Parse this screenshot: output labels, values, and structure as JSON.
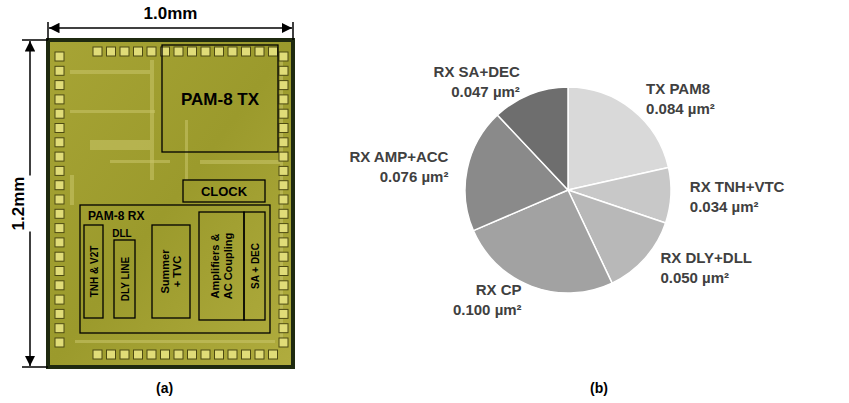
{
  "panel_labels": [
    "(a)",
    "(b)"
  ],
  "die": {
    "width": "1.0mm",
    "height": "1.2mm",
    "blocks": [
      "PAM-8 TX",
      "CLOCK",
      "PAM-8 RX",
      "TNH & V2T",
      "DLL",
      "DLY LINE",
      "Summer + TVC",
      "Amplifiers & AC Coupling",
      "SA + DEC"
    ]
  },
  "chart_data": {
    "type": "pie",
    "categories": [
      "TX PAM8",
      "RX TNH+VTC",
      "RX DLY+DLL",
      "RX CP",
      "RX AMP+ACC",
      "RX SA+DEC"
    ],
    "values": [
      0.084,
      0.034,
      0.05,
      0.1,
      0.076,
      0.047
    ],
    "value_labels": [
      "0.084 µm²",
      "0.034 µm²",
      "0.050 µm²",
      "0.100 µm²",
      "0.076 µm²",
      "0.047 µm²"
    ],
    "colors": [
      "#d9d9d9",
      "#c8c8c8",
      "#b8b8b8",
      "#a2a2a2",
      "#8a8a8a",
      "#6e6e6e"
    ],
    "data_labels": true
  }
}
